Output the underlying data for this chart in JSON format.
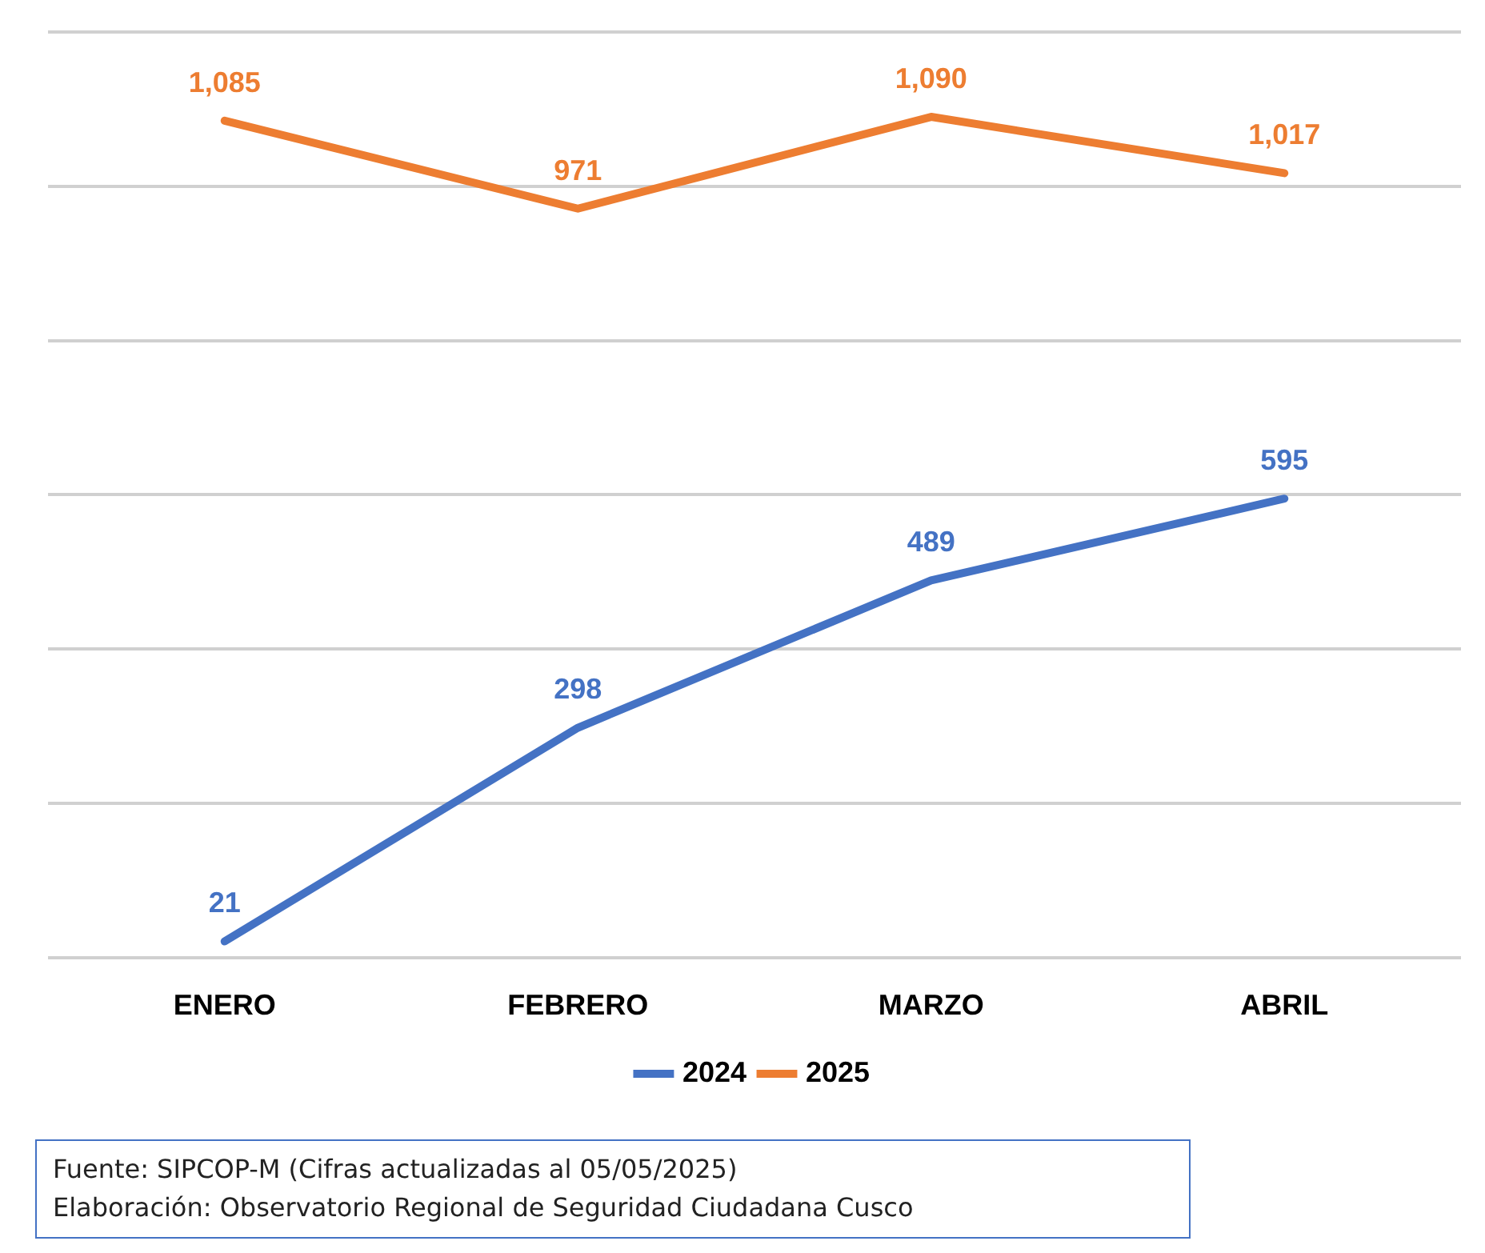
{
  "chart_data": {
    "type": "line",
    "categories": [
      "ENERO",
      "FEBRERO",
      "MARZO",
      "ABRIL"
    ],
    "series": [
      {
        "name": "2024",
        "color": "#4472c4",
        "values": [
          21,
          298,
          489,
          595
        ],
        "value_labels": [
          "21",
          "298",
          "489",
          "595"
        ]
      },
      {
        "name": "2025",
        "color": "#ed7d31",
        "values": [
          1085,
          971,
          1090,
          1017
        ],
        "value_labels": [
          "1,085",
          "971",
          "1,090",
          "1,017"
        ]
      }
    ],
    "ylim": [
      0,
      1200
    ],
    "yticks": [
      0,
      200,
      400,
      600,
      800,
      1000,
      1200
    ],
    "tick_labels": "x",
    "grid": "y",
    "legend": "bottom",
    "marker": "none",
    "annotations": [
      "Fuente: SIPCOP-M (Cifras actualizadas al 05/05/2025)",
      "Elaboración: Observatorio Regional de Seguridad Ciudadana Cusco"
    ]
  }
}
